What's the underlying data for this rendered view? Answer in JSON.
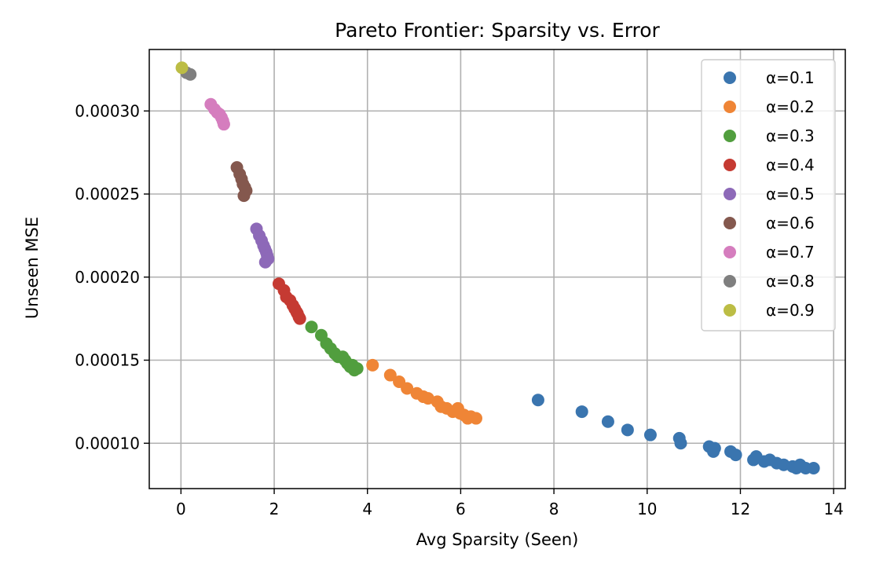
{
  "chart_data": {
    "type": "scatter",
    "title": "Pareto Frontier: Sparsity vs. Error",
    "xlabel": "Avg Sparsity (Seen)",
    "ylabel": "Unseen MSE",
    "xlim": [
      -0.68,
      14.25
    ],
    "ylim": [
      7.27e-05,
      0.000337
    ],
    "xticks": [
      0,
      2,
      4,
      6,
      8,
      10,
      12,
      14
    ],
    "xtick_labels": [
      "0",
      "2",
      "4",
      "6",
      "8",
      "10",
      "12",
      "14"
    ],
    "yticks": [
      0.0001,
      0.00015,
      0.0002,
      0.00025,
      0.0003
    ],
    "ytick_labels": [
      "0.00010",
      "0.00015",
      "0.00020",
      "0.00025",
      "0.00030"
    ],
    "grid": true,
    "legend_position": "upper right",
    "series": [
      {
        "name": "α=0.1",
        "color": "#3a75af",
        "points": [
          [
            7.66,
            0.000126
          ],
          [
            8.6,
            0.000119
          ],
          [
            9.16,
            0.000113
          ],
          [
            9.58,
            0.000108
          ],
          [
            10.07,
            0.000105
          ],
          [
            10.69,
            0.000103
          ],
          [
            10.72,
            0.0001
          ],
          [
            11.33,
            9.8e-05
          ],
          [
            11.42,
            9.5e-05
          ],
          [
            11.45,
            9.7e-05
          ],
          [
            11.79,
            9.5e-05
          ],
          [
            11.9,
            9.3e-05
          ],
          [
            12.28,
            9e-05
          ],
          [
            12.34,
            9.2e-05
          ],
          [
            12.51,
            8.9e-05
          ],
          [
            12.63,
            9e-05
          ],
          [
            12.78,
            8.8e-05
          ],
          [
            12.93,
            8.7e-05
          ],
          [
            13.12,
            8.6e-05
          ],
          [
            13.2,
            8.5e-05
          ],
          [
            13.28,
            8.7e-05
          ],
          [
            13.4,
            8.5e-05
          ],
          [
            13.57,
            8.5e-05
          ]
        ]
      },
      {
        "name": "α=0.2",
        "color": "#ef8536",
        "points": [
          [
            4.11,
            0.000147
          ],
          [
            4.49,
            0.000141
          ],
          [
            4.68,
            0.000137
          ],
          [
            4.85,
            0.000133
          ],
          [
            5.06,
            0.00013
          ],
          [
            5.2,
            0.000128
          ],
          [
            5.3,
            0.000127
          ],
          [
            5.5,
            0.000125
          ],
          [
            5.58,
            0.000122
          ],
          [
            5.7,
            0.000121
          ],
          [
            5.83,
            0.000119
          ],
          [
            5.94,
            0.000121
          ],
          [
            5.99,
            0.000118
          ],
          [
            6.07,
            0.000117
          ],
          [
            6.15,
            0.000115
          ],
          [
            6.22,
            0.000116
          ],
          [
            6.33,
            0.000115
          ]
        ]
      },
      {
        "name": "α=0.3",
        "color": "#519e3e",
        "points": [
          [
            2.8,
            0.00017
          ],
          [
            3.01,
            0.000165
          ],
          [
            3.12,
            0.00016
          ],
          [
            3.21,
            0.000157
          ],
          [
            3.3,
            0.000154
          ],
          [
            3.37,
            0.000152
          ],
          [
            3.47,
            0.000152
          ],
          [
            3.52,
            0.00015
          ],
          [
            3.57,
            0.000148
          ],
          [
            3.63,
            0.000146
          ],
          [
            3.68,
            0.000147
          ],
          [
            3.72,
            0.000144
          ],
          [
            3.78,
            0.000145
          ]
        ]
      },
      {
        "name": "α=0.4",
        "color": "#c53a32",
        "points": [
          [
            2.1,
            0.000196
          ],
          [
            2.21,
            0.000192
          ],
          [
            2.26,
            0.000188
          ],
          [
            2.34,
            0.000186
          ],
          [
            2.4,
            0.000183
          ],
          [
            2.44,
            0.000181
          ],
          [
            2.48,
            0.000179
          ],
          [
            2.5,
            0.000178
          ],
          [
            2.53,
            0.000176
          ],
          [
            2.55,
            0.000175
          ]
        ]
      },
      {
        "name": "α=0.5",
        "color": "#8d69b8",
        "points": [
          [
            1.62,
            0.000229
          ],
          [
            1.68,
            0.000225
          ],
          [
            1.73,
            0.000222
          ],
          [
            1.77,
            0.000219
          ],
          [
            1.8,
            0.000217
          ],
          [
            1.83,
            0.000215
          ],
          [
            1.85,
            0.000213
          ],
          [
            1.87,
            0.000211
          ],
          [
            1.81,
            0.000209
          ]
        ]
      },
      {
        "name": "α=0.6",
        "color": "#84584e",
        "points": [
          [
            1.2,
            0.000266
          ],
          [
            1.26,
            0.000262
          ],
          [
            1.3,
            0.000259
          ],
          [
            1.33,
            0.000256
          ],
          [
            1.37,
            0.000254
          ],
          [
            1.4,
            0.000252
          ],
          [
            1.35,
            0.000249
          ]
        ]
      },
      {
        "name": "α=0.7",
        "color": "#d57dbe",
        "points": [
          [
            0.64,
            0.000304
          ],
          [
            0.72,
            0.000301
          ],
          [
            0.78,
            0.000299
          ],
          [
            0.83,
            0.000298
          ],
          [
            0.87,
            0.000296
          ],
          [
            0.9,
            0.000294
          ],
          [
            0.92,
            0.000292
          ]
        ]
      },
      {
        "name": "α=0.8",
        "color": "#7f7f7f",
        "points": [
          [
            0.2,
            0.000322
          ],
          [
            0.12,
            0.000323
          ]
        ]
      },
      {
        "name": "α=0.9",
        "color": "#bcbd45",
        "points": [
          [
            0.02,
            0.000326
          ]
        ]
      }
    ]
  }
}
